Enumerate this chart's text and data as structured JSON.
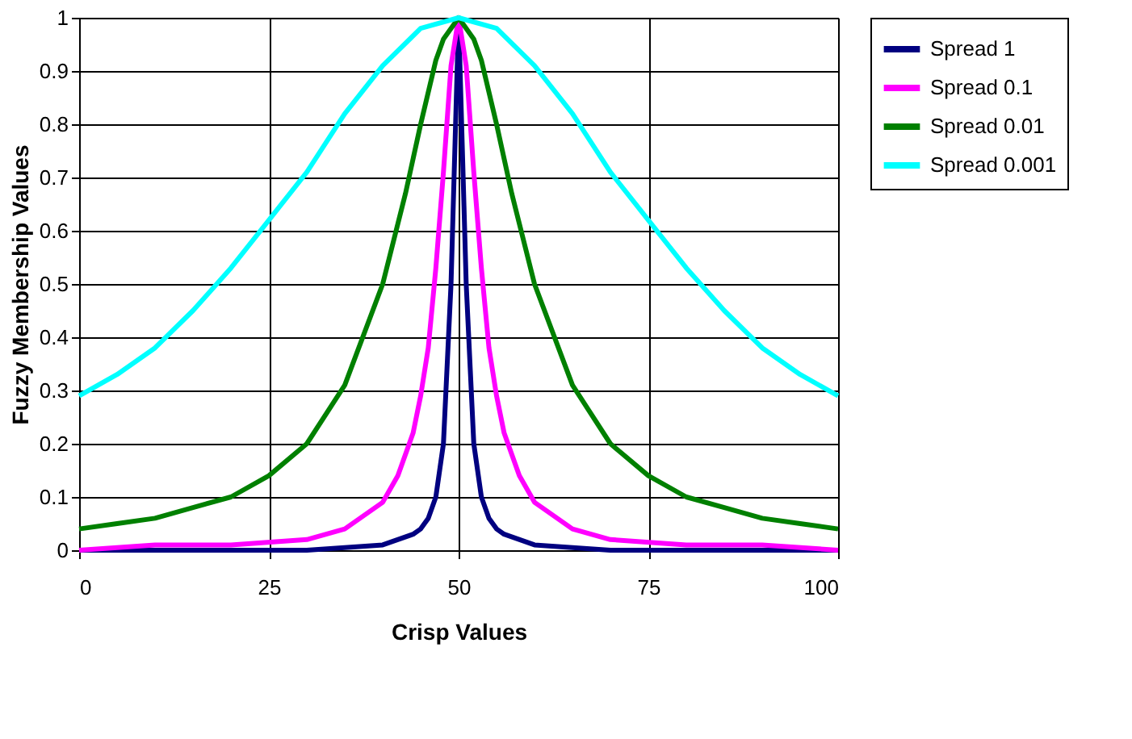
{
  "chart_data": {
    "type": "line",
    "xlabel": "Crisp Values",
    "ylabel": "Fuzzy Membership Values",
    "xlim": [
      0,
      100
    ],
    "xticks": [
      0,
      25,
      50,
      75,
      100
    ],
    "ylim": [
      0,
      1
    ],
    "yticks": [
      0,
      0.1,
      0.2,
      0.3,
      0.4,
      0.5,
      0.6,
      0.7,
      0.8,
      0.9,
      1
    ],
    "grid": true,
    "legend": "top right",
    "marker": "none",
    "line_style": "solid",
    "series": [
      {
        "name": "Spread 1",
        "color": "#000080",
        "x": [
          0,
          10,
          20,
          30,
          40,
          44,
          45,
          46,
          47,
          48,
          49,
          50,
          51,
          52,
          53,
          54,
          55,
          56,
          60,
          70,
          80,
          90,
          100
        ],
        "values": [
          0,
          0,
          0,
          0,
          0.01,
          0.03,
          0.04,
          0.06,
          0.1,
          0.2,
          0.5,
          1,
          0.5,
          0.2,
          0.1,
          0.06,
          0.04,
          0.03,
          0.01,
          0,
          0,
          0,
          0
        ]
      },
      {
        "name": "Spread 0.1",
        "color": "#ff00ff",
        "x": [
          0,
          10,
          20,
          30,
          35,
          40,
          42,
          44,
          45,
          46,
          47,
          48,
          49,
          50,
          51,
          52,
          53,
          54,
          55,
          56,
          58,
          60,
          65,
          70,
          80,
          90,
          100
        ],
        "values": [
          0,
          0.01,
          0.01,
          0.02,
          0.04,
          0.09,
          0.14,
          0.22,
          0.29,
          0.38,
          0.53,
          0.71,
          0.91,
          1,
          0.91,
          0.71,
          0.53,
          0.38,
          0.29,
          0.22,
          0.14,
          0.09,
          0.04,
          0.02,
          0.01,
          0.01,
          0
        ]
      },
      {
        "name": "Spread 0.01",
        "color": "#008000",
        "x": [
          0,
          5,
          10,
          15,
          20,
          25,
          30,
          35,
          40,
          43,
          45,
          47,
          48,
          50,
          52,
          53,
          55,
          57,
          60,
          65,
          70,
          75,
          80,
          85,
          90,
          95,
          100
        ],
        "values": [
          0.04,
          0.05,
          0.06,
          0.08,
          0.1,
          0.14,
          0.2,
          0.31,
          0.5,
          0.67,
          0.8,
          0.92,
          0.96,
          1,
          0.96,
          0.92,
          0.8,
          0.67,
          0.5,
          0.31,
          0.2,
          0.14,
          0.1,
          0.08,
          0.06,
          0.05,
          0.04
        ]
      },
      {
        "name": "Spread 0.001",
        "color": "#00ffff",
        "x": [
          0,
          5,
          10,
          15,
          20,
          25,
          30,
          35,
          40,
          45,
          50,
          55,
          60,
          65,
          70,
          75,
          80,
          85,
          90,
          95,
          100
        ],
        "values": [
          0.29,
          0.33,
          0.38,
          0.45,
          0.53,
          0.62,
          0.71,
          0.82,
          0.91,
          0.98,
          1,
          0.98,
          0.91,
          0.82,
          0.71,
          0.62,
          0.53,
          0.45,
          0.38,
          0.33,
          0.29
        ]
      }
    ]
  }
}
